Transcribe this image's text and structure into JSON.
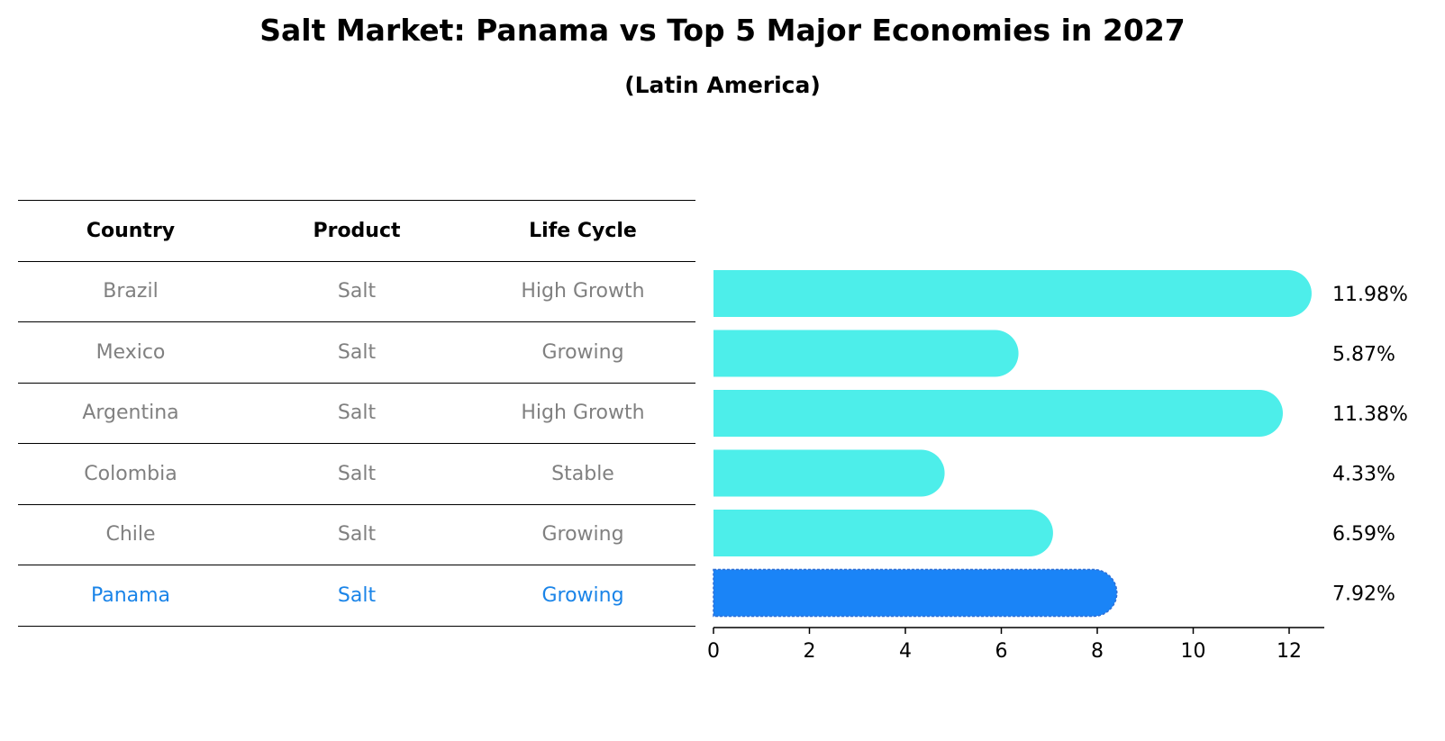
{
  "title": "Salt Market: Panama vs Top 5 Major Economies in 2027",
  "subtitle": "(Latin America)",
  "table": {
    "headers": [
      "Country",
      "Product",
      "Life Cycle"
    ],
    "rows": [
      {
        "country": "Brazil",
        "product": "Salt",
        "life_cycle": "High Growth"
      },
      {
        "country": "Mexico",
        "product": "Salt",
        "life_cycle": "Growing"
      },
      {
        "country": "Argentina",
        "product": "Salt",
        "life_cycle": "High Growth"
      },
      {
        "country": "Colombia",
        "product": "Salt",
        "life_cycle": "Stable"
      },
      {
        "country": "Chile",
        "product": "Salt",
        "life_cycle": "Growing"
      },
      {
        "country": "Panama",
        "product": "Salt",
        "life_cycle": "Growing"
      }
    ],
    "highlight_row": 5
  },
  "chart_data": {
    "type": "bar",
    "orientation": "horizontal",
    "categories": [
      "Brazil",
      "Mexico",
      "Argentina",
      "Colombia",
      "Chile",
      "Panama"
    ],
    "values": [
      11.98,
      5.87,
      11.38,
      4.33,
      6.59,
      7.92
    ],
    "value_labels": [
      "11.98%",
      "5.87%",
      "11.38%",
      "4.33%",
      "6.59%",
      "7.92%"
    ],
    "x_ticks": [
      "0",
      "2",
      "4",
      "6",
      "8",
      "10",
      "12"
    ],
    "xlim": [
      0,
      12.6
    ],
    "grid": false,
    "colors": {
      "default": "#4deeea",
      "highlight": "#1a84f7",
      "highlight_text": "#1a84e8",
      "muted_text": "#808080"
    }
  }
}
